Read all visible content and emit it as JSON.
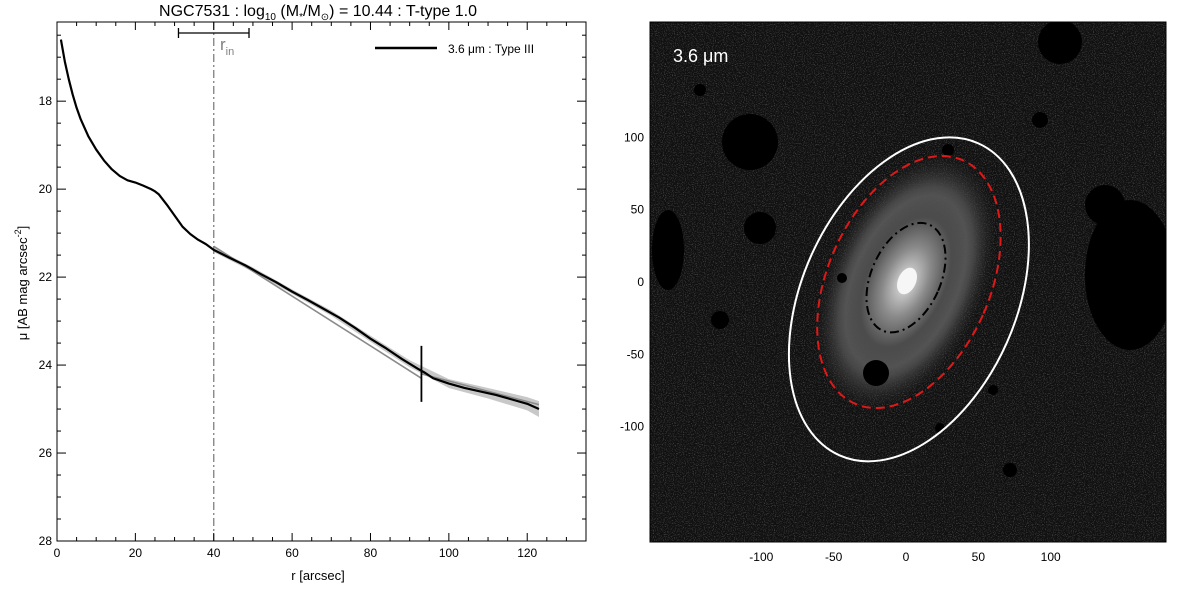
{
  "chart_data": [
    {
      "type": "line",
      "title_parts": {
        "name": "NGC7531 : log",
        "sub10": "10",
        "mid": " (M",
        "star": "*",
        "slash": "/M",
        "sun": "⊙",
        "tail": ") = 10.44 : T-type 1.0"
      },
      "xlabel": "r [arcsec]",
      "ylabel_main": "μ [AB mag arcsec",
      "ylabel_sup": "-2",
      "ylabel_end": "]",
      "xlim": [
        0,
        135
      ],
      "ylim": [
        28,
        16.2
      ],
      "y_inverted": true,
      "xticks": [
        0,
        20,
        40,
        60,
        80,
        100,
        120
      ],
      "xtick_labels": [
        "0",
        "20",
        "40",
        "60",
        "80",
        "100",
        "120"
      ],
      "yticks": [
        18,
        20,
        22,
        24,
        26,
        28
      ],
      "ytick_labels": [
        "18",
        "20",
        "22",
        "24",
        "26",
        "28"
      ],
      "legend": {
        "label": "3.6 μm : Type III",
        "placement": "top-right"
      },
      "series": [
        {
          "name": "3.6 μm : Type III",
          "color": "#000000",
          "x": [
            1,
            2,
            3,
            4,
            5,
            6,
            8,
            10,
            12,
            14,
            16,
            18,
            20,
            22,
            24,
            25,
            26,
            28,
            30,
            32,
            34,
            36,
            38,
            40,
            44,
            48,
            52,
            56,
            60,
            64,
            68,
            72,
            76,
            80,
            84,
            88,
            92,
            94,
            96,
            100,
            104,
            108,
            112,
            116,
            120,
            123
          ],
          "y": [
            16.6,
            17.1,
            17.5,
            17.85,
            18.15,
            18.4,
            18.8,
            19.1,
            19.35,
            19.55,
            19.7,
            19.8,
            19.85,
            19.92,
            20.0,
            20.05,
            20.12,
            20.35,
            20.6,
            20.85,
            21.02,
            21.15,
            21.25,
            21.38,
            21.56,
            21.73,
            21.93,
            22.12,
            22.33,
            22.52,
            22.72,
            22.92,
            23.15,
            23.4,
            23.62,
            23.86,
            24.08,
            24.18,
            24.3,
            24.42,
            24.52,
            24.6,
            24.68,
            24.78,
            24.88,
            25.0
          ]
        }
      ],
      "fit_segments": [
        {
          "x": [
            40,
            93
          ],
          "y": [
            21.3,
            24.3
          ]
        },
        {
          "x": [
            93,
            123
          ],
          "y": [
            24.2,
            24.9
          ]
        }
      ],
      "uncertainty_band": {
        "x": [
          40,
          50,
          60,
          70,
          80,
          90,
          100,
          110,
          120,
          123
        ],
        "half_width": [
          0.05,
          0.05,
          0.05,
          0.06,
          0.07,
          0.08,
          0.1,
          0.12,
          0.15,
          0.18
        ]
      },
      "r_in": {
        "value": 40,
        "err_low": 31,
        "err_high": 49,
        "label_r": "r",
        "label_sub": "in"
      },
      "break_marker": {
        "x": 93,
        "y": 24.2
      }
    },
    {
      "type": "image",
      "label": "3.6 μm",
      "xticks": [
        -100,
        -50,
        0,
        50,
        100
      ],
      "xtick_labels": [
        "-100",
        "-50",
        "0",
        "50",
        "100"
      ],
      "yticks": [
        100,
        50,
        0,
        -50,
        -100
      ],
      "ytick_labels": [
        "100",
        "50",
        "0",
        "-50",
        "-100"
      ],
      "xlim": [
        -180,
        180
      ],
      "ylim": [
        -180,
        180
      ],
      "ellipses": [
        {
          "name": "outer-ellipse",
          "color": "#ffffff",
          "style": "solid",
          "cx": 2,
          "cy": -12,
          "a": 118,
          "b": 74,
          "pa": 24
        },
        {
          "name": "break-ellipse",
          "color": "#e01818",
          "style": "dashed",
          "cx": 2,
          "cy": 0,
          "a": 92,
          "b": 56,
          "pa": 24
        },
        {
          "name": "inner-ellipse",
          "color": "#000000",
          "style": "dashdot",
          "cx": 0,
          "cy": 3,
          "a": 40,
          "b": 24,
          "pa": 24
        }
      ]
    }
  ]
}
